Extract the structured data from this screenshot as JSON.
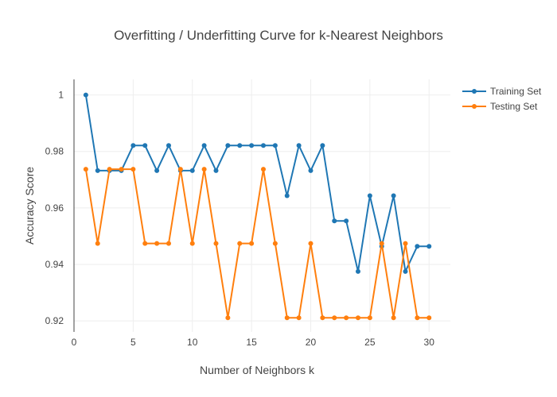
{
  "chart_data": {
    "type": "line",
    "title": "Overfitting / Underfitting Curve for k-Nearest Neighbors",
    "xlabel": "Number of Neighbors k",
    "ylabel": "Accuracy Score",
    "xlim": [
      0,
      31.8
    ],
    "ylim": [
      0.9161,
      1.0055
    ],
    "xticks": [
      0,
      5,
      10,
      15,
      20,
      25,
      30
    ],
    "yticks": [
      0.92,
      0.94,
      0.96,
      0.98,
      1
    ],
    "ytick_labels": [
      "0.92",
      "0.94",
      "0.96",
      "0.98",
      "1"
    ],
    "grid": true,
    "legend_position": "top-right",
    "x": [
      1,
      2,
      3,
      4,
      5,
      6,
      7,
      8,
      9,
      10,
      11,
      12,
      13,
      14,
      15,
      16,
      17,
      18,
      19,
      20,
      21,
      22,
      23,
      24,
      25,
      26,
      27,
      28,
      29,
      30
    ],
    "series": [
      {
        "name": "Training Set",
        "color": "#1f77b4",
        "values": [
          1.0,
          0.9732,
          0.9732,
          0.9732,
          0.9821,
          0.9821,
          0.9732,
          0.9821,
          0.9732,
          0.9732,
          0.9821,
          0.9732,
          0.9821,
          0.9821,
          0.9821,
          0.9821,
          0.9821,
          0.9643,
          0.9821,
          0.9732,
          0.9821,
          0.9554,
          0.9554,
          0.9375,
          0.9643,
          0.9464,
          0.9643,
          0.9375,
          0.9464,
          0.9464
        ]
      },
      {
        "name": "Testing Set",
        "color": "#ff7f0e",
        "values": [
          0.9737,
          0.9474,
          0.9737,
          0.9737,
          0.9737,
          0.9474,
          0.9474,
          0.9474,
          0.9737,
          0.9474,
          0.9737,
          0.9474,
          0.9211,
          0.9474,
          0.9474,
          0.9737,
          0.9474,
          0.9211,
          0.9211,
          0.9474,
          0.9211,
          0.9211,
          0.9211,
          0.9211,
          0.9211,
          0.9474,
          0.9211,
          0.9474,
          0.9211,
          0.9211
        ]
      }
    ]
  }
}
